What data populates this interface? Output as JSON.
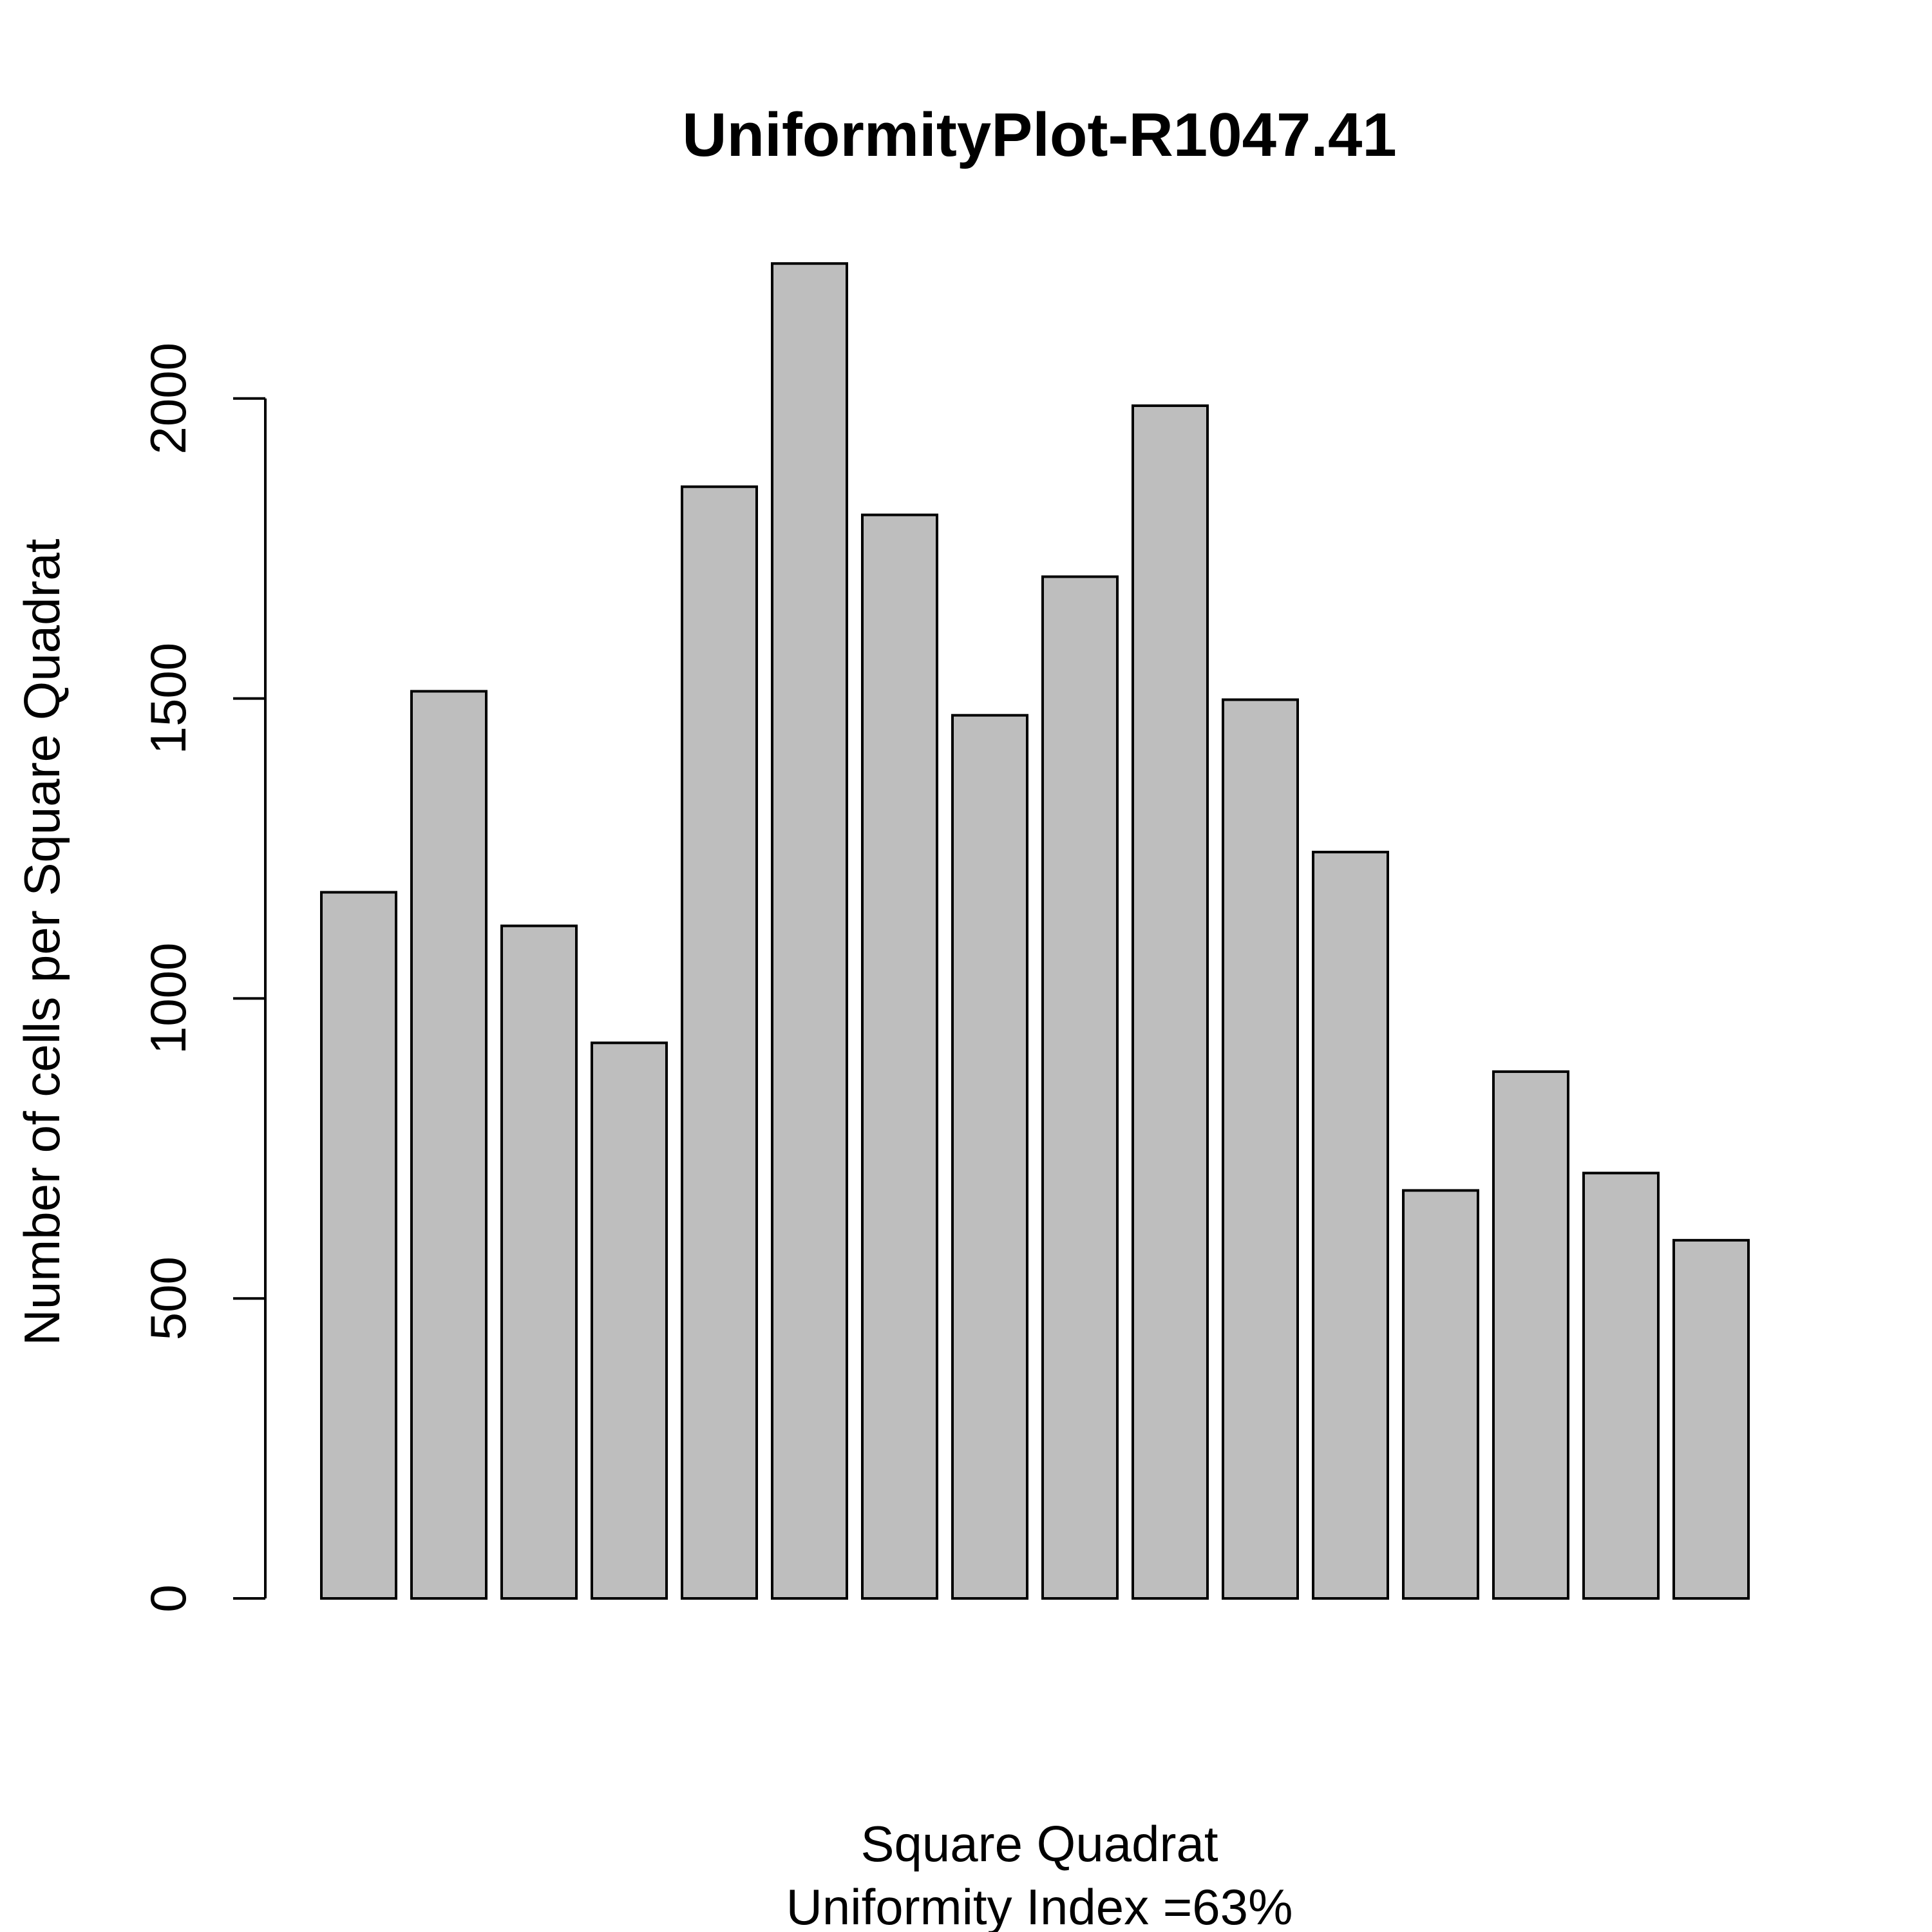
{
  "chart_data": {
    "type": "bar",
    "title": "UniformityPlot-R1047.41",
    "xlabel": "Square Quadrat",
    "subtitle": "Uniformity Index =63%",
    "ylabel": "Number of cells per Square Quadrat",
    "categories": [
      "",
      "",
      "",
      "",
      "",
      "",
      "",
      "",
      "",
      "",
      "",
      "",
      "",
      "",
      "",
      ""
    ],
    "values": [
      1177,
      1512,
      1121,
      926,
      1853,
      2225,
      1806,
      1472,
      1703,
      1988,
      1498,
      1244,
      680,
      878,
      709,
      597
    ],
    "yticks": [
      0,
      500,
      1000,
      1500,
      2000
    ],
    "ylim": [
      0,
      2300
    ],
    "bar_color": "#bebebe",
    "grid": false,
    "legend": false
  }
}
